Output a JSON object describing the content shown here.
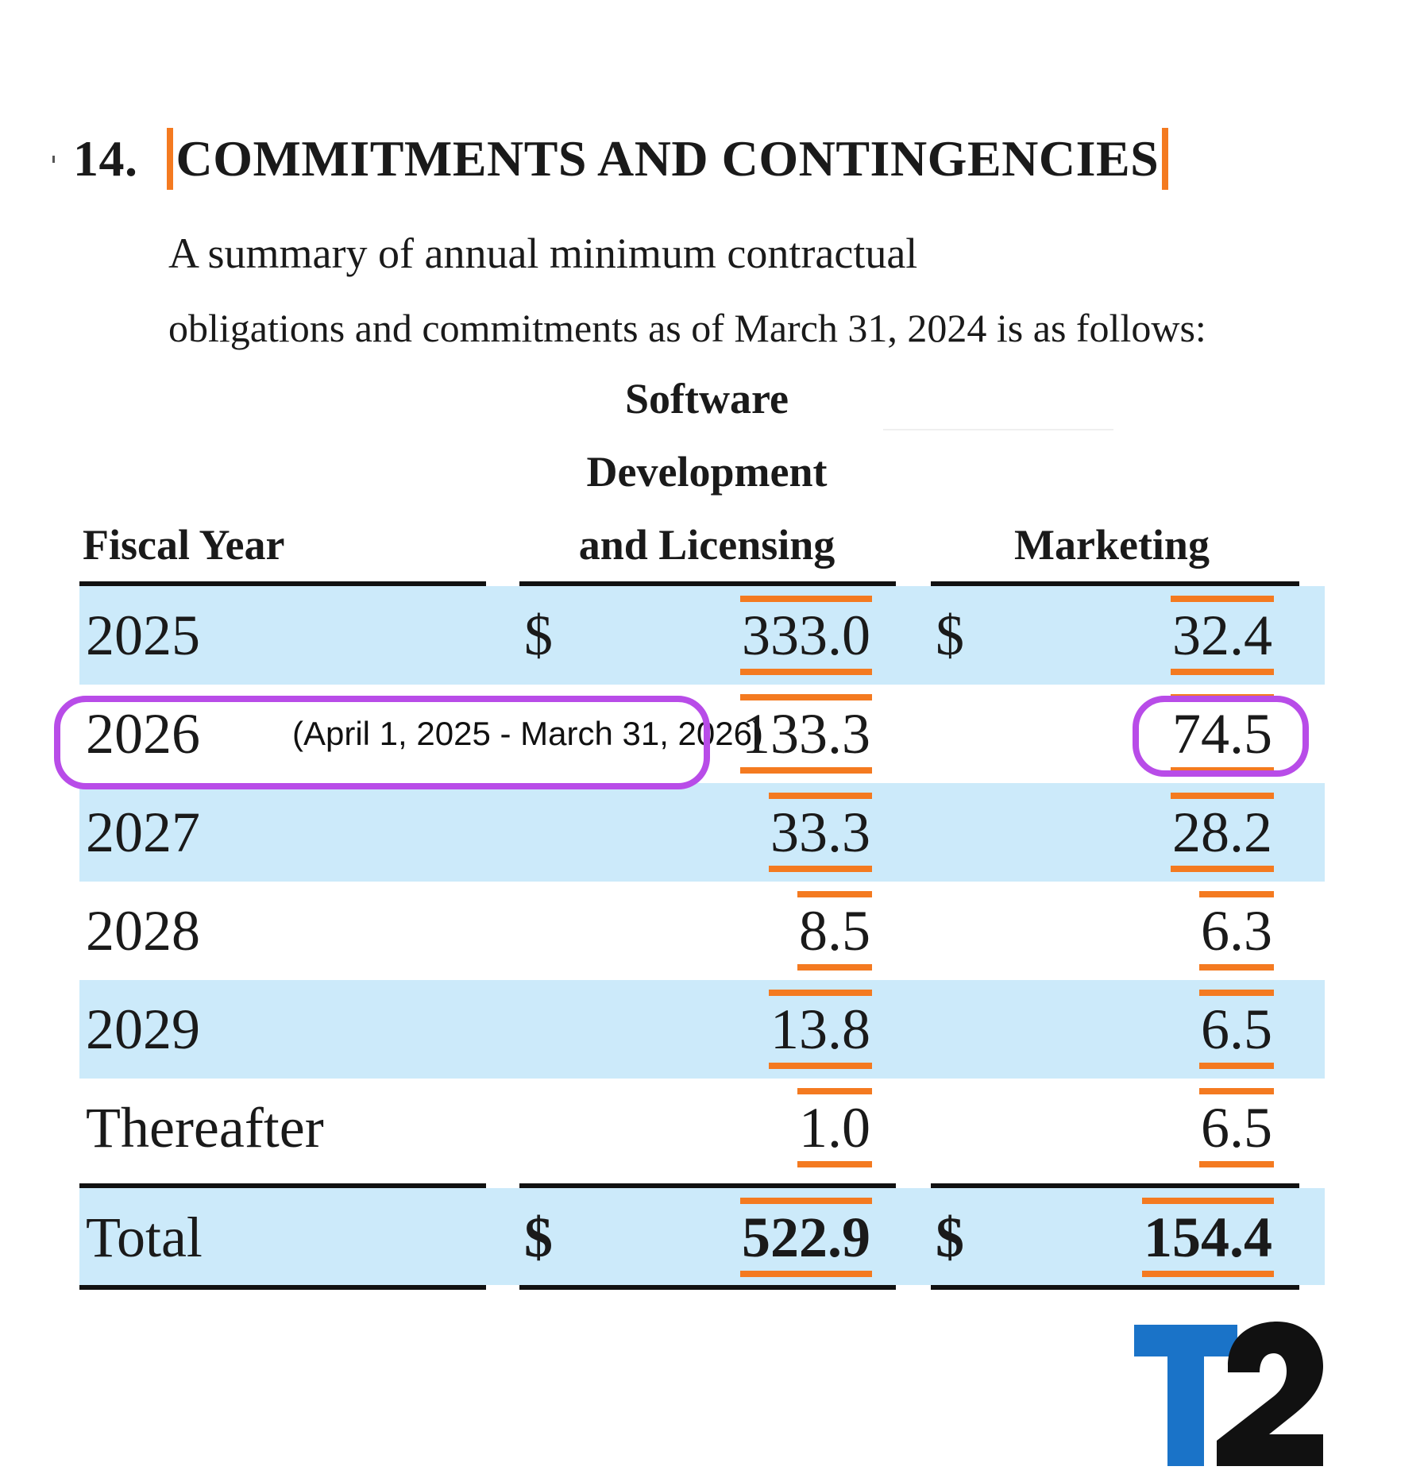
{
  "section": {
    "number": "14.",
    "title": "COMMITMENTS AND CONTINGENCIES"
  },
  "intro": {
    "line1": "A summary of annual minimum contractual",
    "line2": "obligations and commitments as of March 31, 2024 is as follows:"
  },
  "table": {
    "headers": {
      "fiscal_year": "Fiscal Year",
      "software": [
        "Software",
        "Development",
        "and Licensing"
      ],
      "marketing": "Marketing"
    },
    "currency": "$",
    "rows": [
      {
        "year": "2025",
        "software": "333.0",
        "marketing": "32.4",
        "show_currency": true
      },
      {
        "year": "2026",
        "software": "133.3",
        "marketing": "74.5",
        "show_currency": false
      },
      {
        "year": "2027",
        "software": "33.3",
        "marketing": "28.2",
        "show_currency": false
      },
      {
        "year": "2028",
        "software": "8.5",
        "marketing": "6.3",
        "show_currency": false
      },
      {
        "year": "2029",
        "software": "13.8",
        "marketing": "6.5",
        "show_currency": false
      },
      {
        "year": "Thereafter",
        "software": "1.0",
        "marketing": "6.5",
        "show_currency": false
      }
    ],
    "total": {
      "label": "Total",
      "software": "522.9",
      "marketing": "154.4"
    }
  },
  "annotation": {
    "note": "(April 1, 2025 - March 31, 2026)",
    "highlight_color": "#b84ce8"
  },
  "logo": {
    "name": "T2",
    "blue": "#1a73c8",
    "black": "#111111"
  },
  "colors": {
    "band": "#cceafa",
    "accent": "#f47a20",
    "rule": "#111111"
  }
}
